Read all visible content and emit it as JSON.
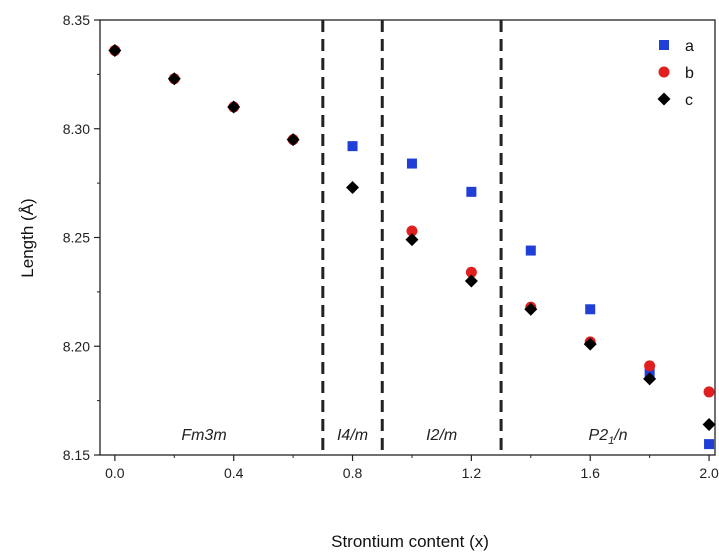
{
  "chart_data": {
    "type": "scatter",
    "title": "",
    "xlabel": "Strontium content (x)",
    "ylabel": "Length (Å)",
    "xlim": [
      -0.05,
      2.02
    ],
    "ylim": [
      8.15,
      8.35
    ],
    "xticks": [
      0.0,
      0.4,
      0.8,
      1.2,
      1.6,
      2.0
    ],
    "xtick_labels": [
      "0.0",
      "0.4",
      "0.8",
      "1.2",
      "1.6",
      "2.0"
    ],
    "yticks": [
      8.15,
      8.2,
      8.25,
      8.3,
      8.35
    ],
    "ytick_labels": [
      "8.15",
      "8.20",
      "8.25",
      "8.30",
      "8.35"
    ],
    "grid": false,
    "legend_position": "top-right",
    "series": [
      {
        "name": "a",
        "marker": "square",
        "color": "#1f3fd6",
        "x": [
          0.8,
          1.0,
          1.2,
          1.4,
          1.6,
          1.8,
          2.0
        ],
        "y": [
          8.292,
          8.284,
          8.271,
          8.244,
          8.217,
          8.188,
          8.155
        ]
      },
      {
        "name": "b",
        "marker": "circle",
        "color": "#e02020",
        "x": [
          0.0,
          0.2,
          0.4,
          0.6,
          1.0,
          1.2,
          1.4,
          1.6,
          1.8,
          2.0
        ],
        "y": [
          8.336,
          8.323,
          8.31,
          8.295,
          8.253,
          8.234,
          8.218,
          8.202,
          8.191,
          8.179
        ]
      },
      {
        "name": "c",
        "marker": "diamond",
        "color": "#000000",
        "x": [
          0.0,
          0.2,
          0.4,
          0.6,
          0.8,
          1.0,
          1.2,
          1.4,
          1.6,
          1.8,
          2.0
        ],
        "y": [
          8.336,
          8.323,
          8.31,
          8.295,
          8.273,
          8.249,
          8.23,
          8.217,
          8.201,
          8.185,
          8.164
        ]
      }
    ],
    "phase_boundaries": [
      0.7,
      0.9,
      1.3
    ],
    "regions": [
      {
        "label": "Fm3m",
        "x": 0.3
      },
      {
        "label": "I4/m",
        "x": 0.8
      },
      {
        "label": "I2/m",
        "x": 1.1
      },
      {
        "label": "P21/n",
        "x": 1.66
      }
    ]
  }
}
